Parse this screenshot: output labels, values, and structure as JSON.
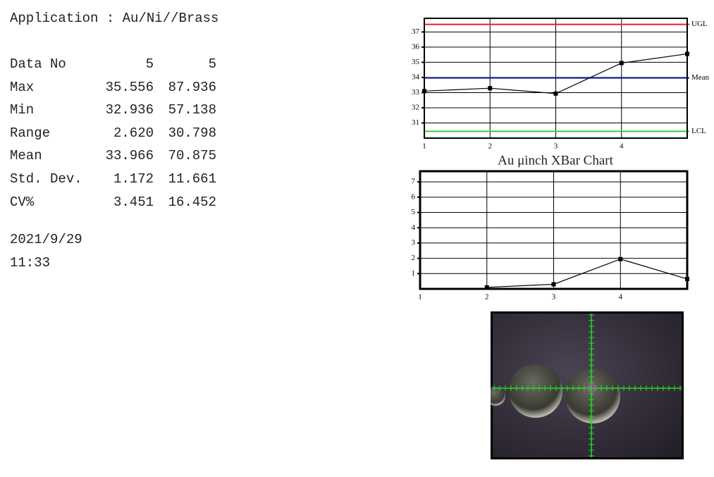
{
  "application": "Application : Au/Ni//Brass",
  "stats": {
    "rows": [
      [
        "Data No",
        "5",
        "5"
      ],
      [
        "Max",
        "35.556",
        "87.936"
      ],
      [
        "Min",
        "32.936",
        "57.138"
      ],
      [
        "Range",
        "2.620",
        "30.798"
      ],
      [
        "Mean",
        "33.966",
        "70.875"
      ],
      [
        "Std. Dev.",
        "1.172",
        "11.661"
      ],
      [
        "CV%",
        "3.451",
        "16.452"
      ]
    ]
  },
  "date": "2021/9/29",
  "time": "11:33",
  "chart_data": [
    {
      "type": "line",
      "title": "Au μinch  XBar Chart",
      "x": [
        1,
        2,
        3,
        4,
        5
      ],
      "values": [
        33.1,
        33.29,
        32.936,
        34.95,
        35.556
      ],
      "color": "#000000",
      "xlim": [
        1,
        5
      ],
      "xticks": [
        1,
        2,
        3,
        4
      ],
      "ylim": [
        30,
        37.9
      ],
      "yticks": [
        31,
        32,
        33,
        34,
        35,
        36,
        37
      ],
      "grid": true,
      "reference_lines": [
        {
          "label": "UGL",
          "value": 37.5,
          "color": "#e8202a"
        },
        {
          "label": "Mean",
          "value": 33.966,
          "color": "#1020a0"
        },
        {
          "label": "LCL",
          "value": 30.45,
          "color": "#30d040"
        }
      ]
    },
    {
      "type": "line",
      "x": [
        1,
        2,
        3,
        4,
        5
      ],
      "values": [
        null,
        0.1,
        0.3,
        1.95,
        0.65
      ],
      "color": "#000000",
      "xlim": [
        1,
        5
      ],
      "xticks": [
        1,
        2,
        3,
        4
      ],
      "ylim": [
        0,
        7.7
      ],
      "yticks": [
        1,
        2,
        3,
        4,
        5,
        6,
        7
      ],
      "grid": true
    }
  ]
}
